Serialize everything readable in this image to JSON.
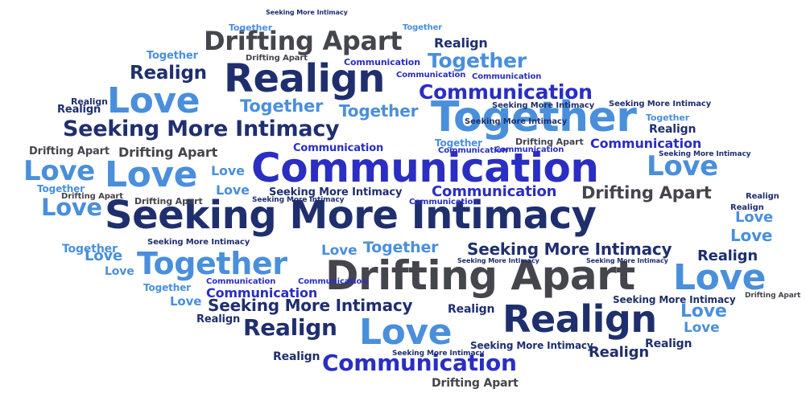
{
  "colors": {
    "navy": "#1f2f6e",
    "indigo": "#2a2ec2",
    "sky": "#4a8fdb",
    "charcoal": "#45454d"
  },
  "words": [
    {
      "text": "Seeking More Intimacy",
      "color": "navy"
    },
    {
      "text": "Communication",
      "color": "indigo"
    },
    {
      "text": "Drifting Apart",
      "color": "charcoal"
    },
    {
      "text": "Together",
      "color": "sky"
    },
    {
      "text": "Realign",
      "color": "navy"
    },
    {
      "text": "Realign",
      "color": "navy"
    },
    {
      "text": "Love",
      "color": "sky"
    },
    {
      "text": "Love",
      "color": "sky"
    },
    {
      "text": "Love",
      "color": "sky"
    },
    {
      "text": "Love",
      "color": "sky"
    },
    {
      "text": "Seeking More Intimacy",
      "color": "navy"
    },
    {
      "text": "Seeking More Intimacy",
      "color": "navy"
    },
    {
      "text": "Seeking More Intimacy",
      "color": "navy"
    },
    {
      "text": "Seeking More Intimacy",
      "color": "navy"
    },
    {
      "text": "Drifting Apart",
      "color": "charcoal"
    },
    {
      "text": "Drifting Apart",
      "color": "charcoal"
    },
    {
      "text": "Drifting Apart",
      "color": "charcoal"
    },
    {
      "text": "Drifting Apart",
      "color": "charcoal"
    },
    {
      "text": "Drifting Apart",
      "color": "charcoal"
    },
    {
      "text": "Drifting Apart",
      "color": "charcoal"
    },
    {
      "text": "Drifting Apart",
      "color": "charcoal"
    },
    {
      "text": "Drifting Apart",
      "color": "charcoal"
    },
    {
      "text": "Drifting Apart",
      "color": "charcoal"
    },
    {
      "text": "Drifting Apart",
      "color": "charcoal"
    },
    {
      "text": "Communication",
      "color": "indigo"
    },
    {
      "text": "Communication",
      "color": "indigo"
    },
    {
      "text": "Communication",
      "color": "indigo"
    },
    {
      "text": "Communication",
      "color": "indigo"
    },
    {
      "text": "Communication",
      "color": "indigo"
    },
    {
      "text": "Communication",
      "color": "indigo"
    },
    {
      "text": "Communication",
      "color": "indigo"
    },
    {
      "text": "Communication",
      "color": "indigo"
    },
    {
      "text": "Communication",
      "color": "indigo"
    },
    {
      "text": "Communication",
      "color": "indigo"
    },
    {
      "text": "Communication",
      "color": "indigo"
    },
    {
      "text": "Communication",
      "color": "indigo"
    },
    {
      "text": "Communication",
      "color": "indigo"
    },
    {
      "text": "Communication",
      "color": "indigo"
    },
    {
      "text": "Together",
      "color": "sky"
    },
    {
      "text": "Together",
      "color": "sky"
    },
    {
      "text": "Together",
      "color": "sky"
    },
    {
      "text": "Together",
      "color": "sky"
    },
    {
      "text": "Together",
      "color": "sky"
    },
    {
      "text": "Together",
      "color": "sky"
    },
    {
      "text": "Together",
      "color": "sky"
    },
    {
      "text": "Together",
      "color": "sky"
    },
    {
      "text": "Together",
      "color": "sky"
    },
    {
      "text": "Together",
      "color": "sky"
    },
    {
      "text": "Together",
      "color": "sky"
    },
    {
      "text": "Together",
      "color": "sky"
    },
    {
      "text": "Together",
      "color": "sky"
    },
    {
      "text": "Realign",
      "color": "navy"
    },
    {
      "text": "Realign",
      "color": "navy"
    },
    {
      "text": "Realign",
      "color": "navy"
    },
    {
      "text": "Realign",
      "color": "navy"
    },
    {
      "text": "Realign",
      "color": "navy"
    },
    {
      "text": "Realign",
      "color": "navy"
    },
    {
      "text": "Realign",
      "color": "navy"
    },
    {
      "text": "Realign",
      "color": "navy"
    },
    {
      "text": "Realign",
      "color": "navy"
    },
    {
      "text": "Realign",
      "color": "navy"
    },
    {
      "text": "Realign",
      "color": "navy"
    },
    {
      "text": "Realign",
      "color": "navy"
    },
    {
      "text": "Realign",
      "color": "navy"
    },
    {
      "text": "Realign",
      "color": "navy"
    },
    {
      "text": "Love",
      "color": "sky"
    },
    {
      "text": "Love",
      "color": "sky"
    },
    {
      "text": "Love",
      "color": "sky"
    },
    {
      "text": "Love",
      "color": "sky"
    },
    {
      "text": "Love",
      "color": "sky"
    },
    {
      "text": "Love",
      "color": "sky"
    },
    {
      "text": "Love",
      "color": "sky"
    },
    {
      "text": "Love",
      "color": "sky"
    },
    {
      "text": "Love",
      "color": "sky"
    },
    {
      "text": "Love",
      "color": "sky"
    },
    {
      "text": "Love",
      "color": "sky"
    },
    {
      "text": "Love",
      "color": "sky"
    },
    {
      "text": "Love",
      "color": "sky"
    },
    {
      "text": "Seeking More Intimacy",
      "color": "navy"
    },
    {
      "text": "Seeking More Intimacy",
      "color": "navy"
    },
    {
      "text": "Seeking More Intimacy",
      "color": "navy"
    },
    {
      "text": "Seeking More Intimacy",
      "color": "navy"
    },
    {
      "text": "Seeking More Intimacy",
      "color": "navy"
    },
    {
      "text": "Seeking More Intimacy",
      "color": "navy"
    },
    {
      "text": "Seeking More Intimacy",
      "color": "navy"
    },
    {
      "text": "Seeking More Intimacy",
      "color": "navy"
    },
    {
      "text": "Seeking More Intimacy",
      "color": "navy"
    },
    {
      "text": "Seeking More Intimacy",
      "color": "navy"
    },
    {
      "text": "Seeking More Intimacy",
      "color": "navy"
    },
    {
      "text": "Seeking More Intimacy",
      "color": "navy"
    }
  ]
}
